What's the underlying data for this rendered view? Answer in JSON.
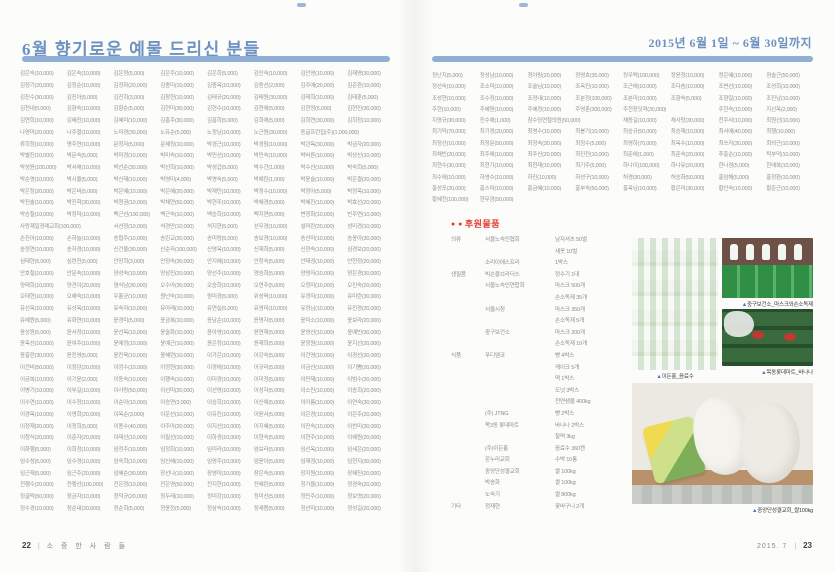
{
  "colors": {
    "accent_blue": "#8fb0d4",
    "title_blue": "#6d92c1",
    "section_red": "#e23a2d"
  },
  "left_page": {
    "title": "6월 향기로운 예물 드리신 분들",
    "donors": [
      "김은숙(10,000)",
      "김은숙(10,000)",
      "김은정(5,000)",
      "김은주(10,000)",
      "김은희(5,000)",
      "김인숙(10,000)",
      "김인영(10,000)",
      "김재영(30,000)",
      "김정기(20,000)",
      "김정순(10,000)",
      "김정화(20,000)",
      "김종미(10,000)",
      "김종옥(10,000)",
      "김종선(2,000)",
      "김주애(20,000)",
      "김준환(10,000)",
      "김진수(30,000)",
      "김진아(5,000)",
      "김진희(3,000)",
      "김창현(10,000)",
      "김태규(20,000)",
      "김태원(30,000)",
      "김태희(10,000)",
      "김태훈(5,000)",
      "김천내(5,000)",
      "김향숙(10,000)",
      "김향순(5,000)",
      "김현미(30,000)",
      "김현수(10,000)",
      "김현애(5,000)",
      "김현정(5,000)",
      "김현진(30,000)",
      "김연희(10,000)",
      "김혜진(10,000)",
      "김혜미(10,000)",
      "김홍주(30,000)",
      "김홍희(5,000)",
      "김희애(5,000)",
      "김희연(30,000)",
      "김희정(10,000)",
      "나영미(20,000)",
      "나주열(10,000)",
      "노미경(30,000)",
      "노유순(5,000)",
      "노정님(10,000)",
      "노근원(30,000)",
      "둥글프런집(주)(1,000,000)",
      "류희정(10,000)",
      "명주연(10,000)",
      "문정자(5,000)",
      "문혜정(10,000)",
      "박경근(10,000)",
      "박경림(10,000)",
      "박관옥(30,000)",
      "박금자(20,000)",
      "박별진(10,000)",
      "박문숙(5,000)",
      "박미경(10,000)",
      "박미숙(10,000)",
      "박민선(10,000)",
      "박민숙(10,000)",
      "박바른(10,000)",
      "박상신(10,000)",
      "박성윤(100,000)",
      "박서애(10,000)",
      "박선순(30,000)",
      "박선희(10,000)",
      "박성갑(5,000)",
      "박수건(1,000)",
      "박수선(10,000)",
      "박숙희(5,000)",
      "박순영(10,000)",
      "박시울(5,000)",
      "박신재(10,000)",
      "박영미(4,000)",
      "박영숙(5,000)",
      "박예린(1,000)",
      "박윤슬(10,000)",
      "박은결(20,000)",
      "박은정(20,000)",
      "박은비(5,000)",
      "박은혜(10,000)",
      "박은혜(20,000)",
      "박재민(10,000)",
      "박정수(10,000)",
      "박정아(5,000)",
      "박정옥(10,000)",
      "박진솔(10,000)",
      "박진학(30,000)",
      "박청권(10,000)",
      "박채연(50,000)",
      "박현주(10,000)",
      "박혜경(5,000)",
      "박혜진(10,000)",
      "박효선(20,000)",
      "박승철(10,000)",
      "박정미(10,000)",
      "백근선(100,000)",
      "백근숙(10,000)",
      "백승희(10,000)",
      "백지연(5,000)",
      "변정화(10,000)",
      "빈주연(10,000)",
      "사랑제일정례교회(100,000)",
      "서선정(10,000)",
      "석경안(10,000)",
      "석지현(5,000)",
      "선우경(10,000)",
      "설미란(20,000)",
      "성미경(10,000)",
      "손진아(10,000)",
      "손하늘(10,000)",
      "송협주(10,000)",
      "송린교(20,000)",
      "송미령(5,000)",
      "송보경(10,000)",
      "송선미(10,000)",
      "송윤아(30,000)",
      "송정연(10,000)",
      "송자경(10,000)",
      "신건울(30,000)",
      "신순자(100,000)",
      "신영옥(10,000)",
      "신재희(5,000)",
      "신현숙(10,000)",
      "심경보(20,000)",
      "심태현(5,000)",
      "심련진(5,000)",
      "안장희(3,000)",
      "안정숙(30,000)",
      "안지혜(10,000)",
      "안창숙(5,000)",
      "안태경(10,000)",
      "안현정(20,000)",
      "안호철(10,000)",
      "안문숙(10,000)",
      "양성숙(10,000)",
      "양삼진(20,000)",
      "양선주(10,000)",
      "양승희(5,000)",
      "양영자(10,000)",
      "양은경(30,000)",
      "양래희(10,000)",
      "양견이(20,000)",
      "염식남(30,000)",
      "오수아(30,000)",
      "오승희(10,000)",
      "오연주(5,000)",
      "오정미(10,000)",
      "오진숙(20,000)",
      "오태현(10,000)",
      "오혜숙(10,000)",
      "우홀균(10,000)",
      "원넌숙(10,000)",
      "원미경(5,000)",
      "위성욱(10,000)",
      "유경자(10,000)",
      "유미란(30,000)",
      "유선옥(10,000)",
      "유상옥(10,000)",
      "유숙자(10,000)",
      "유아래(10,000)",
      "유연실(5,000)",
      "유영미(10,000)",
      "유정님(10,000)",
      "유진경(20,000)",
      "유혜원(5,000)",
      "유화연(10,000)",
      "윤경미(5,000)",
      "윤금복(10,000)",
      "윤남순(10,000)",
      "윤명자(5,000)",
      "윤미소(10,000)",
      "윤보라(20,000)",
      "윤상원(5,000)",
      "윤서정(10,000)",
      "윤선옥(10,000)",
      "윤슬화(10,000)",
      "윤아영(10,000)",
      "윤연재(5,000)",
      "윤영선(10,000)",
      "윤예빈(30,000)",
      "윤옥선(10,000)",
      "윤여주(10,000)",
      "윤예정(10,000)",
      "윤예근(10,000)",
      "윤은정(10,000)",
      "윤재희(5,000)",
      "윤정원(10,000)",
      "윤지선(20,000)",
      "윤흥란(30,000)",
      "윤진영(5,000)",
      "윤진욱(10,000)",
      "윤혜련(10,000)",
      "이가은(10,000)",
      "이강숙(5,000)",
      "이건영(10,000)",
      "이경선(30,000)",
      "이건비(50,000)",
      "이정던(20,000)",
      "이정수(10,000)",
      "이정현(30,000)",
      "이경애(10,000)",
      "이규리(5,000)",
      "이금선(10,000)",
      "이기쁨(20,000)",
      "이금복(10,000)",
      "이기윤(2,000)",
      "이동숙(10,000)",
      "이행숙(10,000)",
      "이미경(10,000)",
      "이미정(5,000)",
      "이민재(10,000)",
      "이범수(30,000)",
      "이병기(10,000)",
      "이부길(10,000)",
      "이사랑(50,000)",
      "이선미(20,000)",
      "이선영(10,000)",
      "이성자(5,000)",
      "이소민(10,000)",
      "이송희(20,000)",
      "이수연(10,000)",
      "이수정(10,000)",
      "이순아(10,000)",
      "이승연(3,000)",
      "이승희(10,000)",
      "이신애(5,000)",
      "이아름(10,000)",
      "이연숙(30,000)",
      "이경옥(10,000)",
      "이영희(20,000)",
      "이옥순(3,000)",
      "이운선(10,000)",
      "이유진(10,000)",
      "이윤서(5,000)",
      "이은경(10,000)",
      "이은주(20,000)",
      "이정재(20,000)",
      "이정희(5,000)",
      "이종수(40,000)",
      "이주아(20,000)",
      "이지선(10,000)",
      "이지혜(5,000)",
      "이진숙(10,000)",
      "이찬미(30,000)",
      "이청식(20,000)",
      "이춘자(20,000)",
      "이태선(10,000)",
      "이필선(10,000)",
      "이하경(10,000)",
      "이현숙(5,000)",
      "이현주(10,000)",
      "이혜원(20,000)",
      "이화행(5,000)",
      "이희정(10,000)",
      "임정주(10,000)",
      "임정희(10,000)",
      "임미라(10,000)",
      "임보라(5,000)",
      "임선옥(10,000)",
      "임세은(20,000)",
      "임수성(5,000)",
      "임수경(10,000)",
      "임숙희(10,000)",
      "임신혜(10,000)",
      "임영주(10,000)",
      "임윤아(5,000)",
      "임재경(10,000)",
      "임현지(30,000)",
      "임근재(5,000)",
      "임근주(20,000)",
      "임혜순(30,000)",
      "장선나(10,000)",
      "장영미(10,000)",
      "장은숙(5,000)",
      "장지원(10,000)",
      "장혜진(20,000)",
      "전행수(20,000)",
      "전행선(100,000)",
      "전은정(10,000)",
      "전은영(50,000)",
      "전지현(10,000)",
      "전혜린(5,000)",
      "정가을(10,000)",
      "정경숙(20,000)",
      "정골떡(50,000)",
      "정금자(10,000)",
      "정덕규(20,000)",
      "정두레(10,000)",
      "정미강(10,000)",
      "정미선(5,000)",
      "정민주(10,000)",
      "정보영(20,000)",
      "정수경(10,000)",
      "정순내(20,000)",
      "정순희(5,000)",
      "정윤정(5,000)",
      "정삼숙(10,000)",
      "정새봄(5,000)",
      "정선미(10,000)",
      "정성길(20,000)"
    ],
    "footer": {
      "page": "22",
      "divider": "|",
      "label": "소 중 한 사 람 들"
    }
  },
  "right_page": {
    "date_range": "2015년 6월 1일 ~ 6월 30일까지",
    "donors": [
      "정난지(5,000)",
      "정성남(10,000)",
      "정아림(20,000)",
      "정영호(35,000)",
      "정우택(100,000)",
      "정윤정(10,000)",
      "정은혜(10,000)",
      "정슬근(50,000)",
      "정선숙(10,000)",
      "조소미(10,000)",
      "조슬남(10,000)",
      "조옥진(10,000)",
      "조근애(10,000)",
      "조다솜(10,000)",
      "조변선(10,000)",
      "조성희(10,000)",
      "조성현(10,000)",
      "조수정(10,000)",
      "조정내(10,000)",
      "조분정(100,000)",
      "조분미(10,000)",
      "조향숙(5,000)",
      "조향일(10,000)",
      "조진남(10,000)",
      "주현(10,000)",
      "주혜원(10,000)",
      "주혜정(10,000)",
      "주영훈(300,000)",
      "주천장닷져(30,000)",
      "주한숙(10,000)",
      "지선옥(2,000)",
      "지영규(30,000)",
      "진수애(1,000)",
      "참수당연철의원(50,000)",
      "채동길(10,000)",
      "채사랑(30,000)",
      "천주사(10,000)",
      "최원선(10,000)",
      "최기덕(70,000)",
      "최기경(20,000)",
      "최영수(10,000)",
      "최봉기(10,000)",
      "최승규(50,000)",
      "최승재(10,000)",
      "최서애(40,000)",
      "최행(10,000)",
      "최정선(10,000)",
      "최정문(50,000)",
      "최정숙(30,000)",
      "최정수(5,000)",
      "최영하(70,000)",
      "최옥수(10,000)",
      "최쓰카(30,000)",
      "최외근(10,000)",
      "최채빈(20,000)",
      "최주애(10,000)",
      "최주신(20,000)",
      "최진전(10,000)",
      "최춘애(1,000)",
      "최춘숙(20,000)",
      "추흥순(10,000)",
      "탁부덕(10,000)",
      "최현수(30,000)",
      "최현기(10,000)",
      "최현재(10,000)",
      "최기주(5,000)",
      "하나이(100,000)",
      "하나유(20,000)",
      "한나겸(5,000)",
      "한애복(10,000)",
      "최수애(10,000)",
      "하영수(10,000)",
      "하진(10,000)",
      "하성구(10,000)",
      "허경(30,000)",
      "허승화(50,000)",
      "홍임해(5,000)",
      "홍정환(10,000)",
      "홍성포(20,000)",
      "홍스미(10,000)",
      "홍금혜(10,000)",
      "홍부숙(50,000)",
      "홍옥님(10,000)",
      "황은미(30,000)",
      "황인숙(10,000)",
      "황준근(10,000)",
      "황혜전(100,000)",
      "현무광(50,000)"
    ],
    "goods_section": {
      "bullets": "● ●",
      "title": "후원물품",
      "rows": [
        {
          "cat": "의류",
          "donor": "서울노숙인협회",
          "item": "남자셔츠 50벌"
        },
        {
          "cat": "",
          "donor": "",
          "item": "새옷 10벌"
        },
        {
          "cat": "",
          "donor": "소리이에스프리",
          "item": "1박스"
        },
        {
          "cat": "생필품",
          "donor": "빅슨울브라더스",
          "item": "정수기 1대"
        },
        {
          "cat": "",
          "donor": "서울노숙인연합회",
          "item": "마스크 500개"
        },
        {
          "cat": "",
          "donor": "",
          "item": "손소독제 35개"
        },
        {
          "cat": "",
          "donor": "서울시청",
          "item": "마스크 350개"
        },
        {
          "cat": "",
          "donor": "",
          "item": "손소독제 5개"
        },
        {
          "cat": "",
          "donor": "중구보건소",
          "item": "마스크 200개"
        },
        {
          "cat": "",
          "donor": "",
          "item": "손소독제 10개"
        },
        {
          "cat": "식품",
          "donor": "푸디엠코",
          "item": "빵 4박스"
        },
        {
          "cat": "",
          "donor": "",
          "item": "케이크 5개"
        },
        {
          "cat": "",
          "donor": "",
          "item": "떡 1박스"
        },
        {
          "cat": "",
          "donor": "",
          "item": "도넛 3박스"
        },
        {
          "cat": "",
          "donor": "",
          "item": "천연샘물 400kg"
        },
        {
          "cat": "",
          "donor": "(주) JTNG",
          "item": "빵 2박스"
        },
        {
          "cat": "",
          "donor": "목3동 롯데마트",
          "item": "바나나 2박스"
        },
        {
          "cat": "",
          "donor": "",
          "item": "찰떡 3kg"
        },
        {
          "cat": "",
          "donor": "(주)이든홀",
          "item": "음료수 360캔"
        },
        {
          "cat": "",
          "donor": "온누리교회",
          "item": "수박 10통"
        },
        {
          "cat": "",
          "donor": "중앙단성결교회",
          "item": "쌀 100kg"
        },
        {
          "cat": "",
          "donor": "박송화",
          "item": "쌀 100kg"
        },
        {
          "cat": "",
          "donor": "노숙기",
          "item": "쌀 800kg"
        },
        {
          "cat": "기타",
          "donor": "정재현",
          "item": "꽃바구니 2개"
        }
      ]
    },
    "photos": [
      {
        "id": "beverages",
        "marker": "▲",
        "caption": "이든홀_음료수"
      },
      {
        "id": "masks",
        "marker": "▲",
        "caption": "중구보건소_마스크와손소독제"
      },
      {
        "id": "bananas",
        "marker": "▲",
        "caption": "목동롯데마트_바나나"
      },
      {
        "id": "rice",
        "marker": "▲",
        "caption": "중앙단성결교회_쌀100kg"
      }
    ],
    "footer": {
      "date": "2015. 7",
      "divider": "|",
      "page": "23"
    }
  }
}
